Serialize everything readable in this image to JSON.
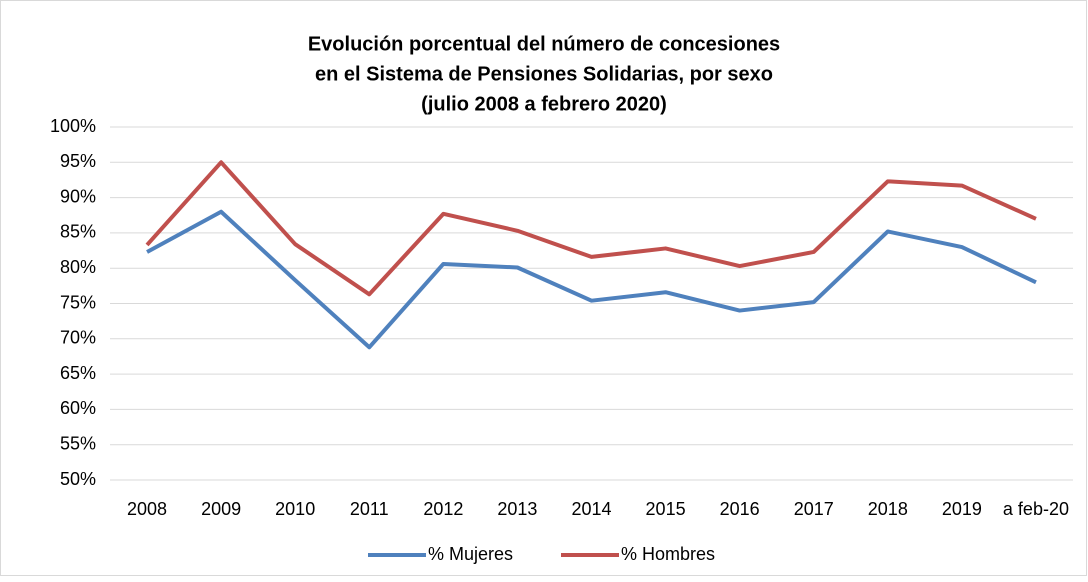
{
  "chart_data": {
    "type": "line",
    "title": [
      "Evolución porcentual del número de concesiones",
      "en el Sistema de Pensiones Solidarias, por sexo",
      "(julio 2008 a febrero 2020)"
    ],
    "categories": [
      "2008",
      "2009",
      "2010",
      "2011",
      "2012",
      "2013",
      "2014",
      "2015",
      "2016",
      "2017",
      "2018",
      "2019",
      "a feb-20"
    ],
    "series": [
      {
        "name": "% Mujeres",
        "color": "#4f81bd",
        "values": [
          82.3,
          88,
          78.3,
          68.8,
          80.6,
          80.1,
          75.4,
          76.6,
          74,
          75.2,
          85.2,
          83,
          78
        ]
      },
      {
        "name": "% Hombres",
        "color": "#c0504d",
        "values": [
          83.3,
          95,
          83.4,
          76.3,
          87.7,
          85.3,
          81.6,
          82.8,
          80.3,
          82.3,
          92.3,
          91.7,
          87
        ]
      }
    ],
    "ylim": [
      50,
      100
    ],
    "yticks": [
      {
        "value": 50,
        "label": "50%"
      },
      {
        "value": 55,
        "label": "55%"
      },
      {
        "value": 60,
        "label": "60%"
      },
      {
        "value": 65,
        "label": "65%"
      },
      {
        "value": 70,
        "label": "70%"
      },
      {
        "value": 75,
        "label": "75%"
      },
      {
        "value": 80,
        "label": "80%"
      },
      {
        "value": 85,
        "label": "85%"
      },
      {
        "value": 90,
        "label": "90%"
      },
      {
        "value": 95,
        "label": "95%"
      },
      {
        "value": 100,
        "label": "100%"
      }
    ],
    "grid": true,
    "legend": "bottom"
  }
}
